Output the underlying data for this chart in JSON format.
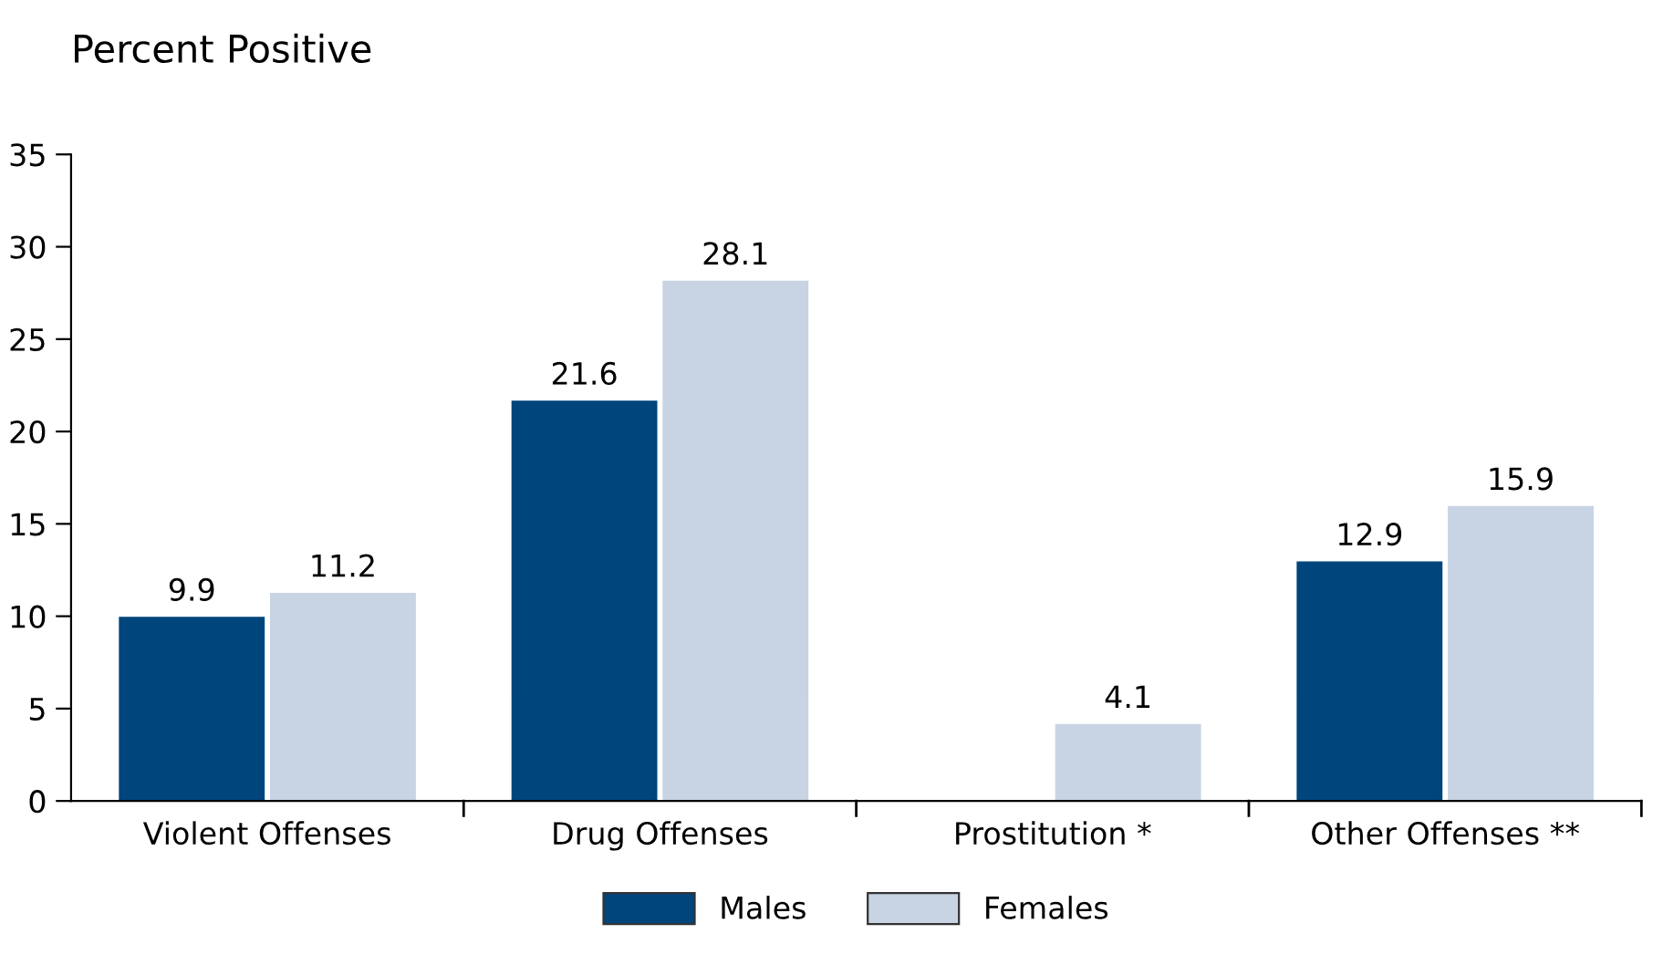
{
  "chart_data": {
    "type": "bar",
    "ylabel": "Percent Positive",
    "categories": [
      "Violent Offenses",
      "Drug Offenses",
      "Prostitution *",
      "Other Offenses **"
    ],
    "series": [
      {
        "name": "Males",
        "color": "#00457c",
        "values": [
          9.9,
          21.6,
          null,
          12.9
        ]
      },
      {
        "name": "Females",
        "color": "#c8d3e3",
        "values": [
          11.2,
          28.1,
          4.1,
          15.9
        ]
      }
    ],
    "ylim": [
      0,
      35
    ],
    "yticks": [
      0,
      5,
      10,
      15,
      20,
      25,
      30,
      35
    ],
    "grid": false,
    "legend": "bottom",
    "data_labels": true
  }
}
